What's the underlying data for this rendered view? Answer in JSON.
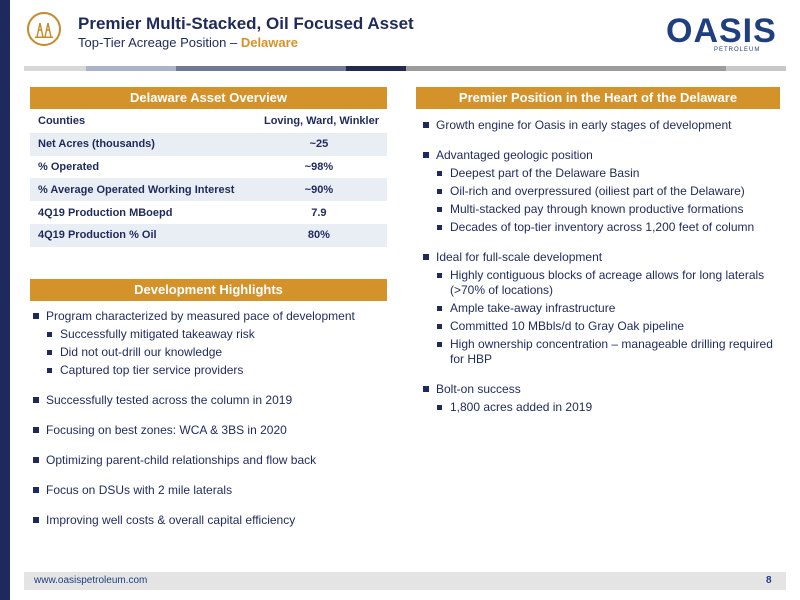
{
  "header": {
    "title": "Premier Multi-Stacked, Oil Focused Asset",
    "subtitle_prefix": "Top-Tier Acreage Position – ",
    "subtitle_accent": "Delaware"
  },
  "brand": {
    "name": "OASIS",
    "sub": "PETROLEUM"
  },
  "colors": {
    "navy": "#1f2a5c",
    "gold": "#d4922b",
    "row_alt": "#e9edf4"
  },
  "overview": {
    "title": "Delaware Asset Overview",
    "rows": [
      {
        "label": "Counties",
        "value": "Loving, Ward, Winkler"
      },
      {
        "label": "Net Acres (thousands)",
        "value": "~25"
      },
      {
        "label": "% Operated",
        "value": "~98%"
      },
      {
        "label": "% Average Operated Working Interest",
        "value": "~90%"
      },
      {
        "label": "4Q19 Production MBoepd",
        "value": "7.9"
      },
      {
        "label": "4Q19 Production % Oil",
        "value": "80%"
      }
    ]
  },
  "development": {
    "title": "Development Highlights",
    "items": [
      {
        "text": "Program characterized by measured pace of development",
        "sub": [
          "Successfully mitigated takeaway risk",
          "Did not out-drill our knowledge",
          "Captured top tier service providers"
        ]
      },
      {
        "text": "Successfully tested across the column in 2019",
        "sub": []
      },
      {
        "text": "Focusing on best zones: WCA & 3BS in 2020",
        "sub": []
      },
      {
        "text": "Optimizing parent-child relationships and flow back",
        "sub": []
      },
      {
        "text": "Focus on DSUs with 2 mile laterals",
        "sub": []
      },
      {
        "text": "Improving well costs & overall capital efficiency",
        "sub": []
      }
    ]
  },
  "premier": {
    "title": "Premier Position in the Heart of the Delaware",
    "items": [
      {
        "text": "Growth engine for Oasis in early stages of development",
        "sub": []
      },
      {
        "text": "Advantaged geologic position",
        "sub": [
          "Deepest part of the Delaware Basin",
          "Oil-rich and overpressured (oiliest part of the Delaware)",
          "Multi-stacked pay through known productive formations",
          "Decades of top-tier inventory across 1,200 feet of column"
        ]
      },
      {
        "text": "Ideal for full-scale development",
        "sub": [
          "Highly contiguous blocks of acreage allows for long laterals (>70% of locations)",
          "Ample take-away infrastructure",
          "Committed 10 MBbls/d to Gray Oak pipeline",
          "High ownership concentration – manageable drilling required for HBP"
        ]
      },
      {
        "text": "Bolt-on success",
        "sub": [
          "1,800 acres added in 2019"
        ]
      }
    ]
  },
  "footer": {
    "url": "www.oasispetroleum.com",
    "page": "8"
  }
}
